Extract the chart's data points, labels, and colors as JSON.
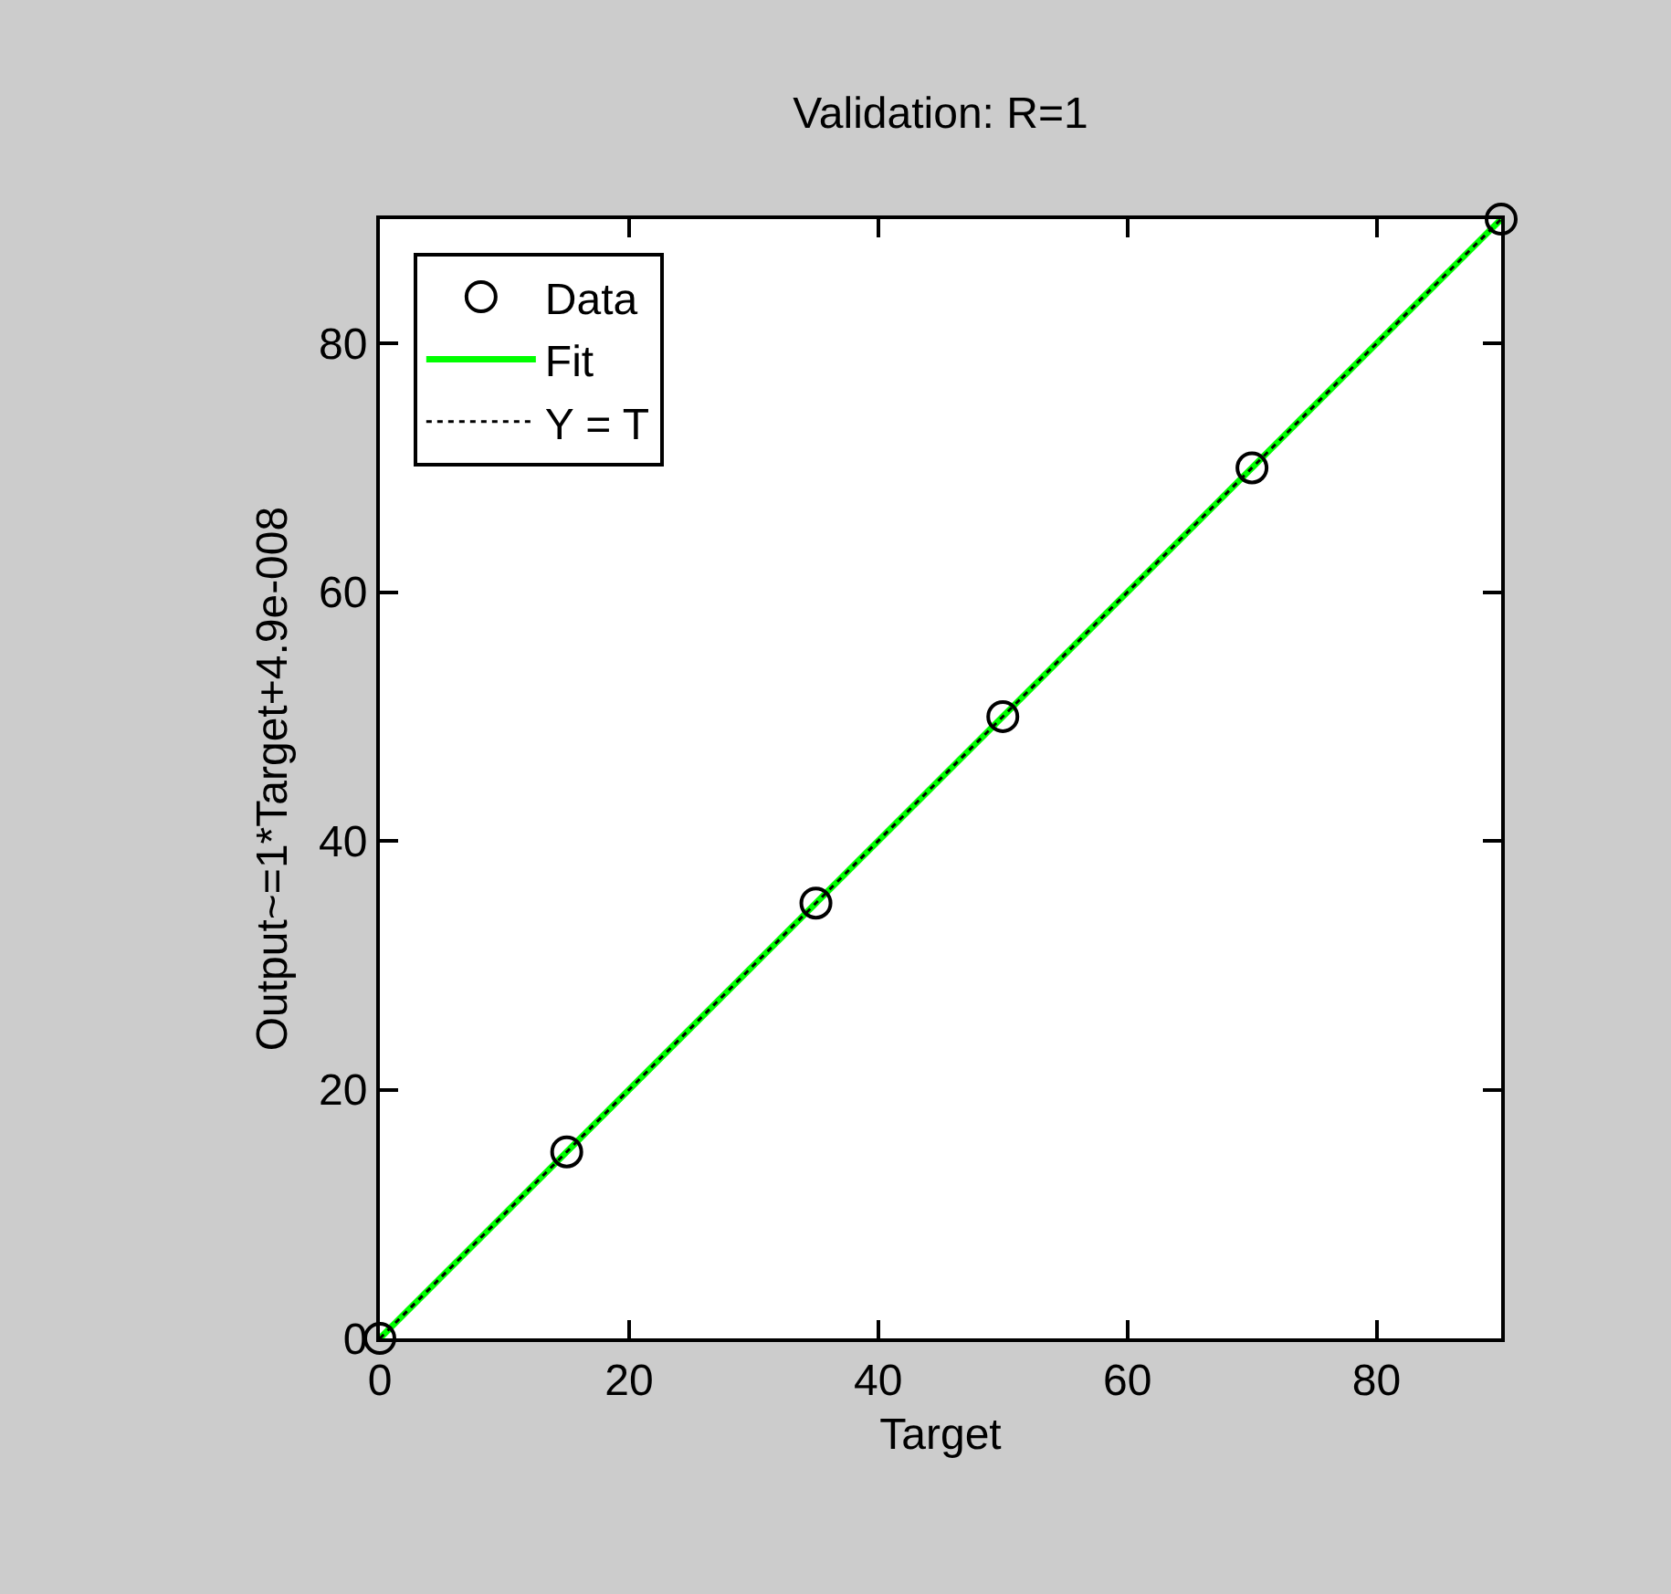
{
  "chart_data": {
    "type": "scatter",
    "title": "Validation: R=1",
    "xlabel": "Target",
    "ylabel": "Output~=1*Target+4.9e-008",
    "xlim": [
      0,
      90
    ],
    "xticks": [
      0,
      20,
      40,
      60,
      80
    ],
    "ylim": [
      0,
      90
    ],
    "yticks": [
      0,
      20,
      40,
      60,
      80
    ],
    "grid": false,
    "legend": "top left",
    "series": [
      {
        "name": "Data",
        "marker": "circle",
        "color": "#000000",
        "x": [
          0,
          15,
          35,
          50,
          70,
          90
        ],
        "values": [
          0,
          15,
          35,
          50,
          70,
          90
        ]
      },
      {
        "name": "Fit",
        "type": "line",
        "color": "#00ff00",
        "line_style": "solid",
        "x": [
          0,
          90
        ],
        "values": [
          0,
          90
        ]
      },
      {
        "name": "Y = T",
        "type": "line",
        "color": "#000000",
        "line_style": "dotted",
        "x": [
          0,
          90
        ],
        "values": [
          0,
          90
        ]
      }
    ]
  }
}
